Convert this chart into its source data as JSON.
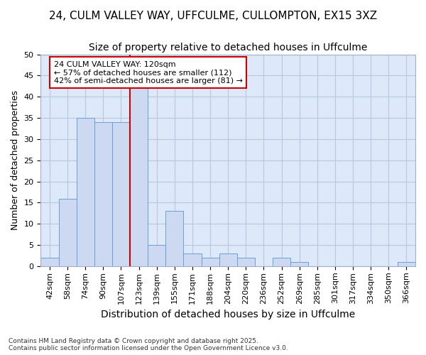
{
  "title_line1": "24, CULM VALLEY WAY, UFFCULME, CULLOMPTON, EX15 3XZ",
  "title_line2": "Size of property relative to detached houses in Uffculme",
  "xlabel": "Distribution of detached houses by size in Uffculme",
  "ylabel": "Number of detached properties",
  "categories": [
    "42sqm",
    "58sqm",
    "74sqm",
    "90sqm",
    "107sqm",
    "123sqm",
    "139sqm",
    "155sqm",
    "171sqm",
    "188sqm",
    "204sqm",
    "220sqm",
    "236sqm",
    "252sqm",
    "269sqm",
    "285sqm",
    "301sqm",
    "317sqm",
    "334sqm",
    "350sqm",
    "366sqm"
  ],
  "values": [
    2,
    16,
    35,
    34,
    34,
    42,
    5,
    13,
    3,
    2,
    3,
    2,
    0,
    2,
    1,
    0,
    0,
    0,
    0,
    0,
    1
  ],
  "bar_color": "#ccd9f0",
  "bar_edge_color": "#6a9fd8",
  "highlight_index": 5,
  "red_line_color": "#cc0000",
  "annotation_text": "24 CULM VALLEY WAY: 120sqm\n← 57% of detached houses are smaller (112)\n42% of semi-detached houses are larger (81) →",
  "annotation_box_color": "#ffffff",
  "annotation_box_edge": "#cc0000",
  "ylim": [
    0,
    50
  ],
  "yticks": [
    0,
    5,
    10,
    15,
    20,
    25,
    30,
    35,
    40,
    45,
    50
  ],
  "grid_color": "#b8c8e0",
  "plot_bg_color": "#dde8f8",
  "fig_bg_color": "#ffffff",
  "footer_line1": "Contains HM Land Registry data © Crown copyright and database right 2025.",
  "footer_line2": "Contains public sector information licensed under the Open Government Licence v3.0.",
  "title_fontsize": 11,
  "subtitle_fontsize": 10,
  "tick_fontsize": 8,
  "ylabel_fontsize": 9,
  "xlabel_fontsize": 10
}
